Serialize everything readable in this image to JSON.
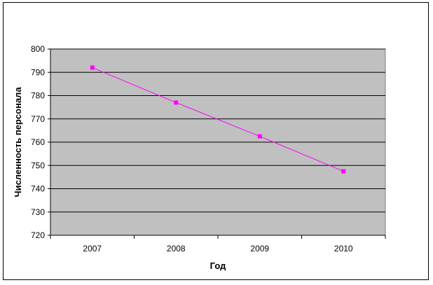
{
  "chart_data": {
    "type": "line",
    "title": "",
    "xlabel": "Год",
    "ylabel": "Численность персонала",
    "categories": [
      "2007",
      "2008",
      "2009",
      "2010"
    ],
    "series": [
      {
        "values": [
          792,
          777,
          762.5,
          747.5
        ]
      }
    ],
    "ylim": [
      720,
      800
    ],
    "yticks": [
      "720",
      "730",
      "740",
      "750",
      "760",
      "770",
      "780",
      "790",
      "800"
    ],
    "grid": true,
    "legend": "none",
    "colors": {
      "plot_background": "#c0c0c0",
      "series_line": "#ff00ff",
      "marker": "#ff00ff",
      "gridline": "#000000"
    }
  }
}
